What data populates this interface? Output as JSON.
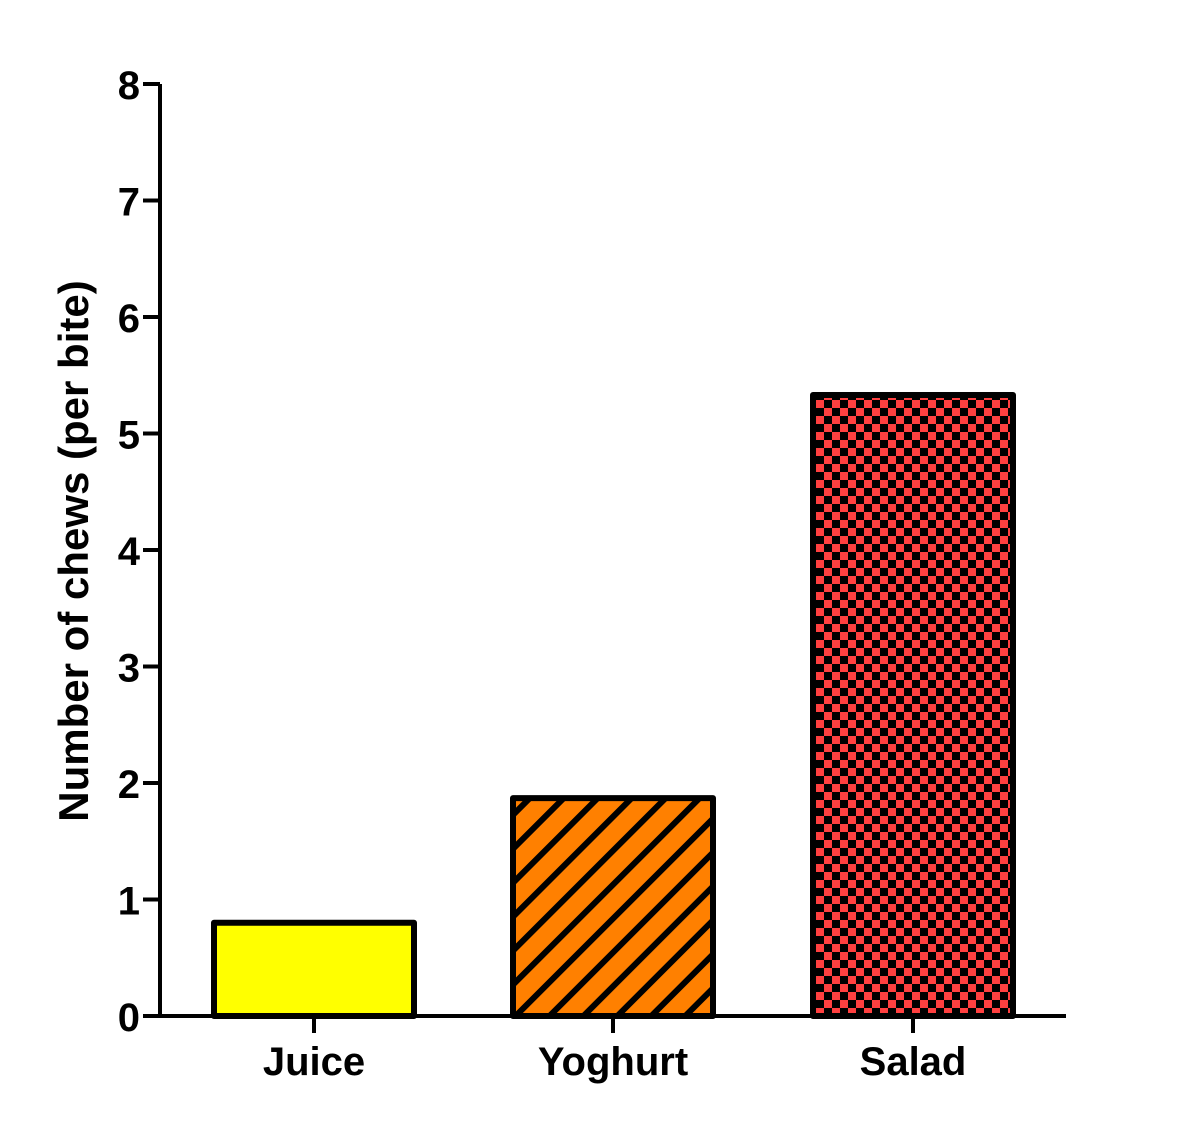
{
  "chart_data": {
    "type": "bar",
    "categories": [
      "Juice",
      "Yoghurt",
      "Salad"
    ],
    "values": [
      0.8,
      1.87,
      5.33
    ],
    "title": "",
    "xlabel": "",
    "ylabel": "Number of chews (per bite)",
    "ylim": [
      0,
      8
    ],
    "yticks": [
      "0",
      "1",
      "2",
      "3",
      "4",
      "5",
      "6",
      "7",
      "8"
    ],
    "grid": false,
    "bar_colors": [
      "#ffff00",
      "#ff8000",
      "#ff4040"
    ],
    "bar_patterns": [
      "solid",
      "diagonal-hatch",
      "checkerboard"
    ],
    "edge_color": "#000000"
  }
}
